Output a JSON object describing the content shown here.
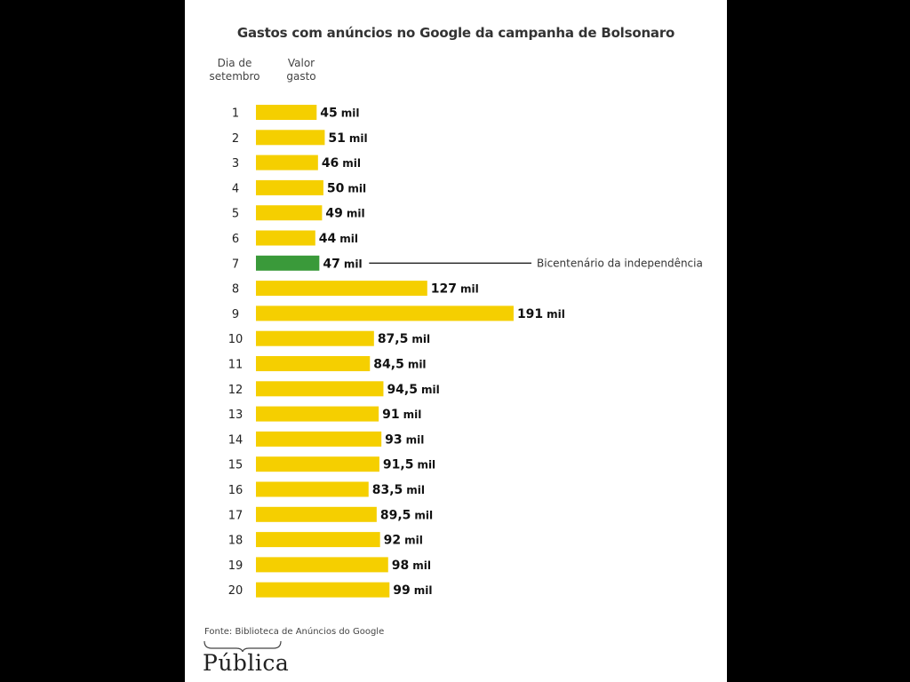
{
  "chart_data": {
    "type": "bar",
    "orientation": "horizontal",
    "title": "Gastos com anúncios no Google da campanha de Bolsonaro",
    "column_headers": {
      "category": [
        "Dia de",
        "setembro"
      ],
      "value": [
        "Valor",
        "gasto"
      ]
    },
    "unit": "mil",
    "categories": [
      "1",
      "2",
      "3",
      "4",
      "5",
      "6",
      "7",
      "8",
      "9",
      "10",
      "11",
      "12",
      "13",
      "14",
      "15",
      "16",
      "17",
      "18",
      "19",
      "20"
    ],
    "values": [
      45,
      51,
      46,
      50,
      49,
      44,
      47,
      127,
      191,
      87.5,
      84.5,
      94.5,
      91,
      93,
      91.5,
      83.5,
      89.5,
      92,
      98,
      99
    ],
    "value_labels": [
      "45",
      "51",
      "46",
      "50",
      "49",
      "44",
      "47",
      "127",
      "191",
      "87,5",
      "84,5",
      "94,5",
      "91",
      "93",
      "91,5",
      "83,5",
      "89,5",
      "92",
      "98",
      "99"
    ],
    "highlight_index": 6,
    "colors": {
      "default": "#f5cf00",
      "highlight": "#3a9a3a"
    },
    "annotation": {
      "index": 6,
      "text": "Bicentenário da independência"
    },
    "grid": false,
    "legend": "none"
  },
  "source": "Fonte: Biblioteca de Anúncios do Google",
  "logo": {
    "text": "Pública"
  }
}
